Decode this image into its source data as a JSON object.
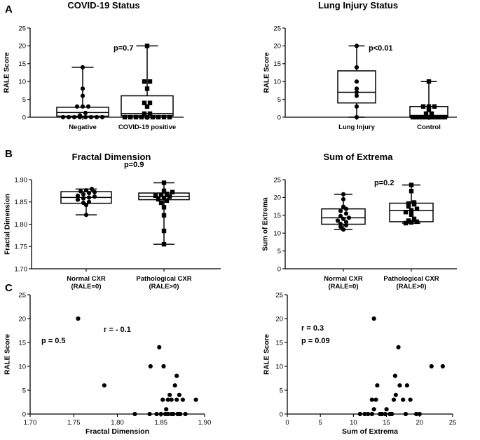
{
  "panel_labels": [
    "A",
    "B",
    "C"
  ],
  "chart_data": [
    {
      "id": "covid",
      "type": "box",
      "title": "COVID-19 Status",
      "ylabel": "RALE Score",
      "xlabel": "",
      "ylim": [
        0,
        25
      ],
      "yticks": [
        "0",
        "5",
        "10",
        "15",
        "20",
        "25"
      ],
      "annotations": [
        "p=0.7"
      ],
      "groups": [
        {
          "label": [
            "Negative"
          ],
          "marker": "circle",
          "stats": {
            "min": 0,
            "q1": 0.3,
            "median": 1.3,
            "q3": 2.8,
            "max": 14
          },
          "points": [
            0,
            0,
            0,
            0,
            0,
            0,
            0,
            0,
            0.5,
            1.2,
            3,
            3,
            3,
            6,
            8,
            14
          ]
        },
        {
          "label": [
            "COVID-19 positive"
          ],
          "marker": "square",
          "stats": {
            "min": 0,
            "q1": 0.4,
            "median": 1,
            "q3": 6,
            "max": 20
          },
          "points": [
            0,
            0,
            0,
            0,
            0,
            0,
            0,
            0,
            0,
            1,
            1,
            3,
            4,
            4,
            8,
            10,
            10,
            20
          ]
        }
      ]
    },
    {
      "id": "lung",
      "type": "box",
      "title": "Lung Injury Status",
      "ylabel": "RALE Score",
      "xlabel": "",
      "ylim": [
        0,
        25
      ],
      "yticks": [
        "0",
        "5",
        "10",
        "15",
        "20",
        "25"
      ],
      "annotations": [
        "p<0.01"
      ],
      "groups": [
        {
          "label": [
            "Lung Injury"
          ],
          "marker": "circle",
          "stats": {
            "min": 0,
            "q1": 4,
            "median": 7,
            "q3": 13,
            "max": 20
          },
          "points": [
            0,
            3,
            6,
            7,
            8,
            10,
            14,
            20
          ]
        },
        {
          "label": [
            "Control"
          ],
          "marker": "square",
          "stats": {
            "min": 0,
            "q1": 0,
            "median": 0.4,
            "q3": 3,
            "max": 10
          },
          "points": [
            0,
            0,
            0,
            0,
            0,
            0,
            0,
            0,
            0,
            0,
            0,
            1,
            1,
            2,
            3,
            3,
            3,
            10
          ]
        }
      ]
    },
    {
      "id": "fractal",
      "type": "box",
      "title": "Fractal Dimension",
      "ylabel": "Fractal Dimension",
      "xlabel": "",
      "ylim": [
        1.7,
        1.9
      ],
      "yticks": [
        "1.70",
        "1.75",
        "1.80",
        "1.85",
        "1.90"
      ],
      "annotations": [
        "p=0.9"
      ],
      "groups": [
        {
          "label": [
            "Normal CXR",
            "(RALE=0)"
          ],
          "marker": "circle",
          "stats": {
            "min": 1.821,
            "q1": 1.847,
            "median": 1.86,
            "q3": 1.873,
            "max": 1.879
          },
          "points": [
            1.821,
            1.843,
            1.848,
            1.85,
            1.855,
            1.858,
            1.86,
            1.862,
            1.864,
            1.867,
            1.87,
            1.872,
            1.874,
            1.876,
            1.879
          ]
        },
        {
          "label": [
            "Pathological CXR",
            "(RALE>0)"
          ],
          "marker": "square",
          "stats": {
            "min": 1.755,
            "q1": 1.855,
            "median": 1.862,
            "q3": 1.87,
            "max": 1.893
          },
          "points": [
            1.755,
            1.785,
            1.82,
            1.838,
            1.848,
            1.853,
            1.856,
            1.859,
            1.862,
            1.864,
            1.866,
            1.868,
            1.872,
            1.875,
            1.893
          ]
        }
      ]
    },
    {
      "id": "extrema",
      "type": "box",
      "title": "Sum of Extrema",
      "ylabel": "Sum of Extrema",
      "xlabel": "",
      "ylim": [
        0,
        25
      ],
      "yticks": [
        "0",
        "5",
        "10",
        "15",
        "20",
        "25"
      ],
      "annotations": [
        "p=0.2"
      ],
      "groups": [
        {
          "label": [
            "Normal CXR",
            "(RALE=0)"
          ],
          "marker": "circle",
          "stats": {
            "min": 11,
            "q1": 12.5,
            "median": 14.3,
            "q3": 16.8,
            "max": 20.9
          },
          "points": [
            11,
            11.8,
            12.2,
            12.6,
            13.1,
            13.5,
            14,
            14.3,
            14.8,
            15.5,
            16.2,
            16.8,
            17.4,
            19.5,
            20.9
          ]
        },
        {
          "label": [
            "Pathological CXR",
            "(RALE>0)"
          ],
          "marker": "square",
          "stats": {
            "min": 12.8,
            "q1": 13.2,
            "median": 16.4,
            "q3": 18.4,
            "max": 23.5
          },
          "points": [
            12.8,
            13,
            13.2,
            13.5,
            14,
            15.2,
            15.9,
            16.4,
            16.8,
            17.5,
            18.1,
            18.3,
            18.6,
            21.8,
            23.5
          ]
        }
      ]
    },
    {
      "id": "scatter_fd",
      "type": "scatter",
      "title": "",
      "xlabel": "Fractal Dimension",
      "ylabel": "RALE Score",
      "xlim": [
        1.7,
        1.9
      ],
      "ylim": [
        0,
        25
      ],
      "xticks": [
        "1.70",
        "1.75",
        "1.80",
        "1.85",
        "1.90"
      ],
      "yticks": [
        "0",
        "5",
        "10",
        "15",
        "20",
        "25"
      ],
      "annotations": [
        "r = - 0.1",
        "p = 0.5"
      ],
      "x": [
        1.755,
        1.785,
        1.82,
        1.837,
        1.838,
        1.845,
        1.848,
        1.85,
        1.852,
        1.853,
        1.855,
        1.856,
        1.858,
        1.858,
        1.86,
        1.862,
        1.862,
        1.864,
        1.866,
        1.868,
        1.868,
        1.869,
        1.87,
        1.871,
        1.872,
        1.875,
        1.878,
        1.89
      ],
      "y": [
        20,
        6,
        0,
        0,
        10,
        0,
        14,
        0,
        3,
        10,
        0,
        1,
        0,
        3,
        4,
        0,
        3,
        0,
        6,
        3,
        8,
        0,
        0,
        4,
        0,
        3,
        0,
        3
      ]
    },
    {
      "id": "scatter_se",
      "type": "scatter",
      "title": "",
      "xlabel": "Sum of Extrema",
      "ylabel": "RALE Score",
      "xlim": [
        0,
        25
      ],
      "ylim": [
        0,
        25
      ],
      "xticks": [
        "0",
        "5",
        "10",
        "15",
        "20",
        "25"
      ],
      "yticks": [
        "0",
        "5",
        "10",
        "15",
        "20",
        "25"
      ],
      "annotations": [
        "r = 0.3",
        "p = 0.09"
      ],
      "x": [
        11,
        11.7,
        12.2,
        12.8,
        12.8,
        13.1,
        13.1,
        13.4,
        13.6,
        14,
        14.3,
        14.8,
        15,
        15.5,
        15.8,
        16.1,
        16.3,
        16.4,
        16.8,
        17,
        17.5,
        17.9,
        18.1,
        18.6,
        19.5,
        20,
        21.8,
        23.5
      ],
      "y": [
        0,
        0,
        0,
        0,
        3,
        20,
        1,
        3,
        6,
        0,
        0,
        0,
        1,
        0,
        0,
        3,
        8,
        4,
        14,
        6,
        3,
        0,
        6,
        3,
        0,
        0,
        10,
        10
      ]
    }
  ]
}
